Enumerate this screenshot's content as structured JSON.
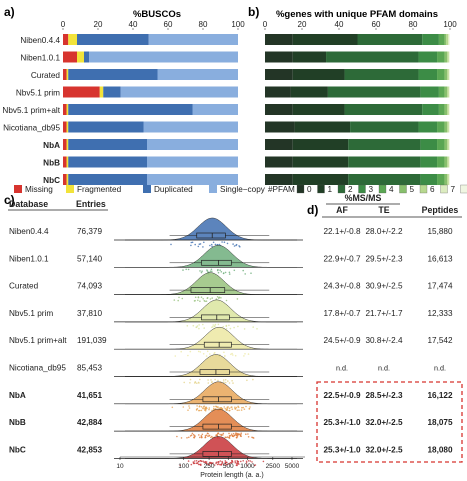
{
  "panel_labels": [
    "a)",
    "b)",
    "c)",
    "d)"
  ],
  "colors": {
    "missing": "#d7342f",
    "fragmented": "#f2e33a",
    "duplicated": "#3f6fb0",
    "single_copy": "#89aede",
    "pfam": [
      "#2a3a2c",
      "#1f3b24",
      "#2c6b37",
      "#3b8c45",
      "#5aa855",
      "#88c06d",
      "#b8d991",
      "#e4f0c8"
    ],
    "ridge": [
      "#3f6fb0",
      "#6fae7c",
      "#98c27d",
      "#dbe59f",
      "#ece8a2",
      "#e4d38a",
      "#e7a658",
      "#df7a3a",
      "#c83438"
    ],
    "highlight_box": "#d7342f"
  },
  "chart_data": [
    {
      "type": "bar",
      "subtype": "stacked-horizontal",
      "title": "%BUSCOs",
      "xlim": [
        0,
        100
      ],
      "x_ticks": [
        "0",
        "20",
        "40",
        "60",
        "80",
        "100"
      ],
      "categories": [
        "Niben0.4.4",
        "Niben1.0.1",
        "Curated",
        "Nbv5.1 prim",
        "Nbv5.1 prim+alt",
        "Nicotiana_db95",
        "NbA",
        "NbB",
        "NbC"
      ],
      "bold_categories": [
        "NbA",
        "NbB",
        "NbC"
      ],
      "series": [
        {
          "name": "Missing",
          "values": [
            3,
            8,
            2,
            21,
            2,
            2,
            2,
            2,
            2
          ]
        },
        {
          "name": "Fragmented",
          "values": [
            5,
            4,
            1,
            2,
            1,
            1,
            1,
            1,
            1
          ]
        },
        {
          "name": "Duplicated",
          "values": [
            41,
            3,
            51,
            10,
            71,
            43,
            45,
            45,
            45
          ]
        },
        {
          "name": "Single−copy",
          "values": [
            51,
            85,
            46,
            67,
            26,
            54,
            52,
            52,
            52
          ]
        }
      ],
      "legend": [
        "Missing",
        "Fragmented",
        "Duplicated",
        "Single−copy"
      ]
    },
    {
      "type": "bar",
      "subtype": "stacked-horizontal",
      "title": "%genes with unique PFAM domains",
      "xlim": [
        0,
        100
      ],
      "x_ticks": [
        "0",
        "20",
        "40",
        "60",
        "80",
        "100"
      ],
      "legend_title": "#PFAM",
      "legend": [
        "0",
        "1",
        "2",
        "3",
        "4",
        "5",
        "6",
        "7",
        "8"
      ],
      "series_values_per_row": [
        [
          15,
          35,
          35,
          9,
          3,
          1,
          1,
          0.5,
          0.5
        ],
        [
          15,
          18,
          50,
          10,
          4,
          1.5,
          0.7,
          0.4,
          0.4
        ],
        [
          15,
          28,
          40,
          10,
          4,
          1.5,
          0.7,
          0.4,
          0.4
        ],
        [
          14,
          20,
          50,
          10,
          3,
          1.5,
          0.7,
          0.4,
          0.4
        ],
        [
          15,
          28,
          42,
          9,
          3,
          1.5,
          0.7,
          0.4,
          0.4
        ],
        [
          16,
          30,
          37,
          10,
          4,
          1.5,
          0.7,
          0.4,
          0.4
        ],
        [
          15,
          30,
          39,
          9,
          4,
          1.5,
          0.7,
          0.4,
          0.4
        ],
        [
          15,
          30,
          39,
          9,
          4,
          1.5,
          0.7,
          0.4,
          0.4
        ],
        [
          15,
          30,
          39,
          9,
          4,
          1.5,
          0.7,
          0.4,
          0.4
        ]
      ]
    },
    {
      "type": "area",
      "subtype": "ridgeline",
      "xlabel": "Protein length (a. a.)",
      "x_scale": "log",
      "x_ticks": [
        "10",
        "100",
        "250",
        "500",
        "1000",
        "2500",
        "5000"
      ],
      "column_headers": [
        "Database",
        "Entries"
      ],
      "rows": [
        {
          "database": "Niben0.4.4",
          "entries": "76,379",
          "median": 280,
          "q1": 160,
          "q3": 450
        },
        {
          "database": "Niben1.0.1",
          "entries": "57,140",
          "median": 350,
          "q1": 190,
          "q3": 560
        },
        {
          "database": "Curated",
          "entries": "74,093",
          "median": 260,
          "q1": 130,
          "q3": 440
        },
        {
          "database": "Nbv5.1 prim",
          "entries": "37,810",
          "median": 330,
          "q1": 190,
          "q3": 520
        },
        {
          "database": "Nbv5.1 prim+alt",
          "entries": "191,039",
          "median": 360,
          "q1": 210,
          "q3": 560
        },
        {
          "database": "Nicotiana_db95",
          "entries": "85,453",
          "median": 320,
          "q1": 180,
          "q3": 520
        },
        {
          "database": "NbA",
          "entries": "41,651",
          "median": 350,
          "q1": 200,
          "q3": 560
        },
        {
          "database": "NbB",
          "entries": "42,884",
          "median": 350,
          "q1": 200,
          "q3": 560
        },
        {
          "database": "NbC",
          "entries": "42,853",
          "median": 350,
          "q1": 200,
          "q3": 560
        }
      ]
    },
    {
      "type": "table",
      "super_header": "%MS/MS",
      "columns": [
        "AF",
        "TE",
        "Peptides"
      ],
      "rows": [
        [
          "22.1+/-0.8",
          "28.0+/-2.2",
          "15,880"
        ],
        [
          "22.9+/-0.7",
          "29.5+/-2.3",
          "16,613"
        ],
        [
          "24.3+/-0.8",
          "30.9+/-2.5",
          "17,474"
        ],
        [
          "17.8+/-0.7",
          "21.7+/-1.7",
          "12,333"
        ],
        [
          "24.5+/-0.9",
          "30.8+/-2.4",
          "17,542"
        ],
        [
          "n.d.",
          "n.d.",
          "n.d."
        ],
        [
          "22.5+/-0.9",
          "28.5+/-2.3",
          "16,122"
        ],
        [
          "25.3+/-1.0",
          "32.0+/-2.5",
          "18,075"
        ],
        [
          "25.3+/-1.0",
          "32.0+/-2.5",
          "18,080"
        ]
      ],
      "bold_rows": [
        6,
        7,
        8
      ]
    }
  ]
}
